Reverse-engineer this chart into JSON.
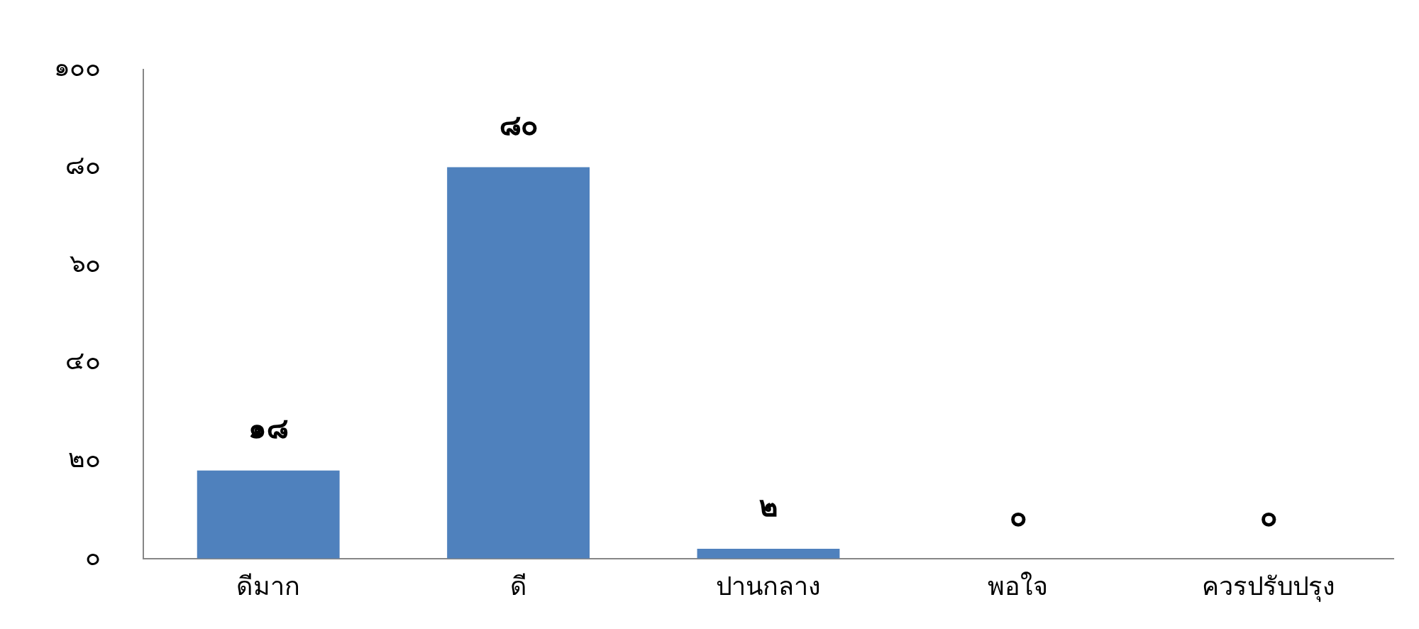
{
  "chart_data": {
    "type": "bar",
    "categories": [
      "ดีมาก",
      "ดี",
      "ปานกลาง",
      "พอใจ",
      "ควรปรับปรุง"
    ],
    "values": [
      18,
      80,
      2,
      0,
      0
    ],
    "value_labels": [
      "๑๘",
      "๘๐",
      "๒",
      "๐",
      "๐"
    ],
    "color": "#4f81bd",
    "ylim": [
      0,
      100
    ],
    "yticks": [
      {
        "value": 0,
        "label": "๐"
      },
      {
        "value": 20,
        "label": "๒๐"
      },
      {
        "value": 40,
        "label": "๔๐"
      },
      {
        "value": 60,
        "label": "๖๐"
      },
      {
        "value": 80,
        "label": "๘๐"
      },
      {
        "value": 100,
        "label": "๑๐๐"
      }
    ],
    "grid": false,
    "legend": false
  }
}
